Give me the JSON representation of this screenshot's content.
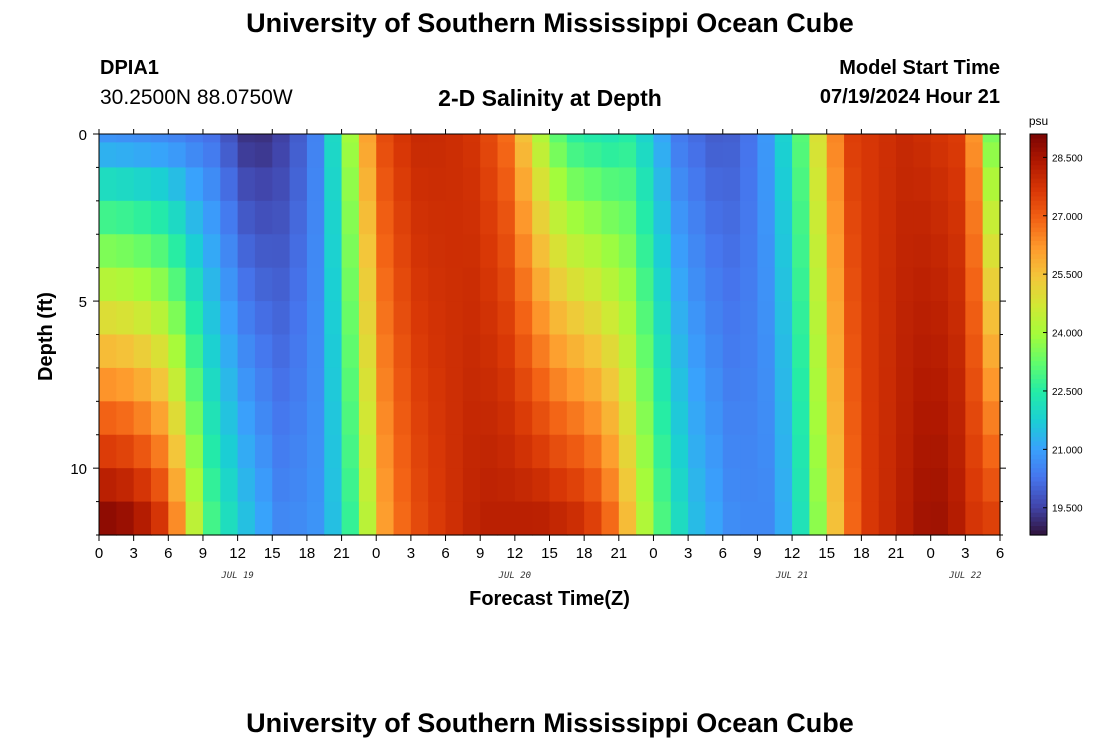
{
  "header": {
    "title": "University of Southern Mississippi Ocean Cube",
    "station_id": "DPIA1",
    "station_coords": "30.2500N  88.0750W",
    "subtitle": "2-D Salinity at Depth",
    "model_start_label": "Model Start Time",
    "model_start_value": "07/19/2024 Hour 21"
  },
  "footer": {
    "title": "University of Southern Mississippi Ocean Cube"
  },
  "chart_data": {
    "type": "heatmap",
    "xlabel": "Forecast Time(Z)",
    "ylabel": "Depth (ft)",
    "colorbar_unit": "psu",
    "x_start_hour": 0,
    "x_end_hour": 78,
    "hour_step": 1.5,
    "x_tick_labels": [
      "0",
      "3",
      "6",
      "9",
      "12",
      "15",
      "18",
      "21",
      "0",
      "3",
      "6",
      "9",
      "12",
      "15",
      "18",
      "21",
      "0",
      "3",
      "6",
      "9",
      "12",
      "15",
      "18",
      "21",
      "0",
      "3",
      "6"
    ],
    "date_labels": [
      {
        "label": "JUL 19",
        "hour": 12
      },
      {
        "label": "JUL 20",
        "hour": 36
      },
      {
        "label": "JUL 21",
        "hour": 60
      },
      {
        "label": "JUL 22",
        "hour": 75
      }
    ],
    "y_range": [
      0,
      12
    ],
    "y_reversed": true,
    "y_ticks": [
      0,
      5,
      10
    ],
    "depth_levels_ft": [
      0,
      0.5,
      1.5,
      2.5,
      3.5,
      4.5,
      5.5,
      6.5,
      7.5,
      8.5,
      9.5,
      10.5,
      11.5
    ],
    "salinity_surface_keyframes": [
      [
        0,
        20.8
      ],
      [
        6,
        20.6
      ],
      [
        10,
        20.2
      ],
      [
        13,
        19.2
      ],
      [
        15,
        19.3
      ],
      [
        17,
        19.8
      ],
      [
        19,
        20.6
      ],
      [
        21,
        22.8
      ],
      [
        23,
        25.8
      ],
      [
        25,
        27.5
      ],
      [
        28,
        28.0
      ],
      [
        32,
        27.8
      ],
      [
        35,
        27.0
      ],
      [
        37,
        25.3
      ],
      [
        39,
        23.5
      ],
      [
        41,
        22.6
      ],
      [
        44,
        22.3
      ],
      [
        46,
        22.5
      ],
      [
        48,
        21.5
      ],
      [
        50,
        20.4
      ],
      [
        54,
        19.8
      ],
      [
        57,
        20.4
      ],
      [
        59,
        21.6
      ],
      [
        61,
        23.3
      ],
      [
        63,
        25.8
      ],
      [
        65,
        27.5
      ],
      [
        70,
        28.0
      ],
      [
        75,
        27.5
      ],
      [
        76.5,
        25.0
      ],
      [
        78,
        22.0
      ]
    ],
    "salinity_bottom_keyframes": [
      [
        0,
        28.9
      ],
      [
        3,
        28.6
      ],
      [
        6,
        27.4
      ],
      [
        8,
        24.6
      ],
      [
        10,
        22.6
      ],
      [
        13,
        21.4
      ],
      [
        16,
        20.5
      ],
      [
        19,
        20.8
      ],
      [
        21,
        21.9
      ],
      [
        23,
        24.0
      ],
      [
        25,
        26.4
      ],
      [
        28,
        27.4
      ],
      [
        33,
        28.2
      ],
      [
        38,
        28.2
      ],
      [
        42,
        27.8
      ],
      [
        44,
        27.0
      ],
      [
        46,
        25.4
      ],
      [
        48,
        23.4
      ],
      [
        51,
        21.6
      ],
      [
        55,
        20.6
      ],
      [
        58,
        20.6
      ],
      [
        60,
        21.5
      ],
      [
        62,
        23.4
      ],
      [
        64,
        25.8
      ],
      [
        66,
        27.5
      ],
      [
        70,
        28.3
      ],
      [
        72,
        28.7
      ],
      [
        74,
        28.4
      ],
      [
        76,
        27.6
      ],
      [
        78,
        27.4
      ]
    ],
    "colorbar_min": 18.8,
    "colorbar_max": 29.1,
    "colorbar_ticks": [
      "28.500",
      "27.000",
      "25.500",
      "24.000",
      "22.500",
      "21.000",
      "19.500"
    ],
    "colormap": [
      "#30123b",
      "#4145ab",
      "#4675ed",
      "#39a2fc",
      "#1bcfd4",
      "#24eca6",
      "#61fc6c",
      "#a4fc3b",
      "#d1e834",
      "#f3c63a",
      "#fe9b2d",
      "#f36315",
      "#d93806",
      "#b11901",
      "#7a0403"
    ]
  }
}
